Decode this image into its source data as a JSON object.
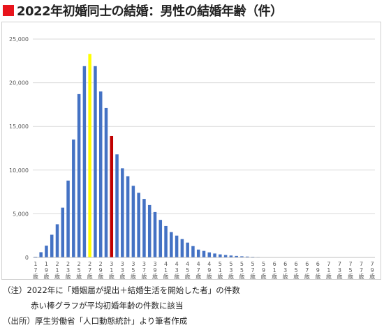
{
  "title": {
    "text": "2022年初婚同士の結婚：男性の結婚年齢（件）",
    "marker_color": "#e8141c"
  },
  "notes": {
    "line1": "（注）2022年に「婚姻届が提出＋結婚生活を開始した者」の件数",
    "line2": "赤い棒グラフが平均初婚年齢の件数に該当",
    "source": "（出所）厚生労働省「人口動態統計」より筆者作成"
  },
  "chart_data": {
    "type": "bar",
    "title": "2022年初婚同士の結婚：男性の結婚年齢（件）",
    "xlabel": "",
    "ylabel": "",
    "ylim": [
      0,
      25000
    ],
    "yticks": [
      0,
      5000,
      10000,
      15000,
      20000,
      25000
    ],
    "ytick_labels": [
      "0",
      "5,000",
      "10,000",
      "15,000",
      "20,000",
      "25,000"
    ],
    "grid": true,
    "legend": "none",
    "categories": [
      "17歳",
      "18歳",
      "19歳",
      "20歳",
      "21歳",
      "22歳",
      "23歳",
      "24歳",
      "25歳",
      "26歳",
      "27歳",
      "28歳",
      "29歳",
      "30歳",
      "31歳",
      "32歳",
      "33歳",
      "34歳",
      "35歳",
      "36歳",
      "37歳",
      "38歳",
      "39歳",
      "40歳",
      "41歳",
      "42歳",
      "43歳",
      "44歳",
      "45歳",
      "46歳",
      "47歳",
      "48歳",
      "49歳",
      "50歳",
      "51歳",
      "52歳",
      "53歳",
      "54歳",
      "55歳",
      "56歳",
      "57歳",
      "58歳",
      "59歳",
      "60歳",
      "61歳",
      "62歳",
      "63歳",
      "64歳",
      "65歳",
      "66歳",
      "67歳",
      "68歳",
      "69歳",
      "70歳",
      "71歳",
      "72歳",
      "73歳",
      "74歳",
      "75歳",
      "76歳",
      "77歳",
      "78歳",
      "79歳"
    ],
    "tick_labels": [
      "17歳",
      "",
      "19歳",
      "",
      "21歳",
      "",
      "23歳",
      "",
      "25歳",
      "",
      "27歳",
      "",
      "29歳",
      "",
      "31歳",
      "",
      "33歳",
      "",
      "35歳",
      "",
      "37歳",
      "",
      "39歳",
      "",
      "41歳",
      "",
      "43歳",
      "",
      "45歳",
      "",
      "47歳",
      "",
      "49歳",
      "",
      "51歳",
      "",
      "53歳",
      "",
      "55歳",
      "",
      "57歳",
      "",
      "59歳",
      "",
      "61歳",
      "",
      "63歳",
      "",
      "65歳",
      "",
      "67歳",
      "",
      "69歳",
      "",
      "71歳",
      "",
      "73歳",
      "",
      "75歳",
      "",
      "77歳",
      "",
      "79歳"
    ],
    "values": [
      80,
      600,
      1350,
      2600,
      3800,
      5700,
      8800,
      13500,
      18700,
      21900,
      23300,
      21900,
      19000,
      17100,
      13900,
      11800,
      10200,
      9300,
      8200,
      7400,
      6700,
      6000,
      5200,
      4300,
      3600,
      2900,
      2500,
      2100,
      1700,
      1300,
      900,
      750,
      580,
      450,
      350,
      280,
      220,
      170,
      130,
      100,
      70,
      50,
      35,
      25,
      18,
      12,
      9,
      6,
      5,
      4,
      3,
      2,
      2,
      1,
      1,
      1,
      1,
      0,
      0,
      0,
      0,
      0,
      0
    ],
    "default_color": "#4472c4",
    "highlights": [
      {
        "category": "27歳",
        "color": "#ffff00"
      },
      {
        "category": "31歳",
        "color": "#c00000"
      }
    ],
    "gridline_color": "#d9d9d9",
    "axis_color": "#bfbfbf",
    "label_color": "#595959"
  }
}
